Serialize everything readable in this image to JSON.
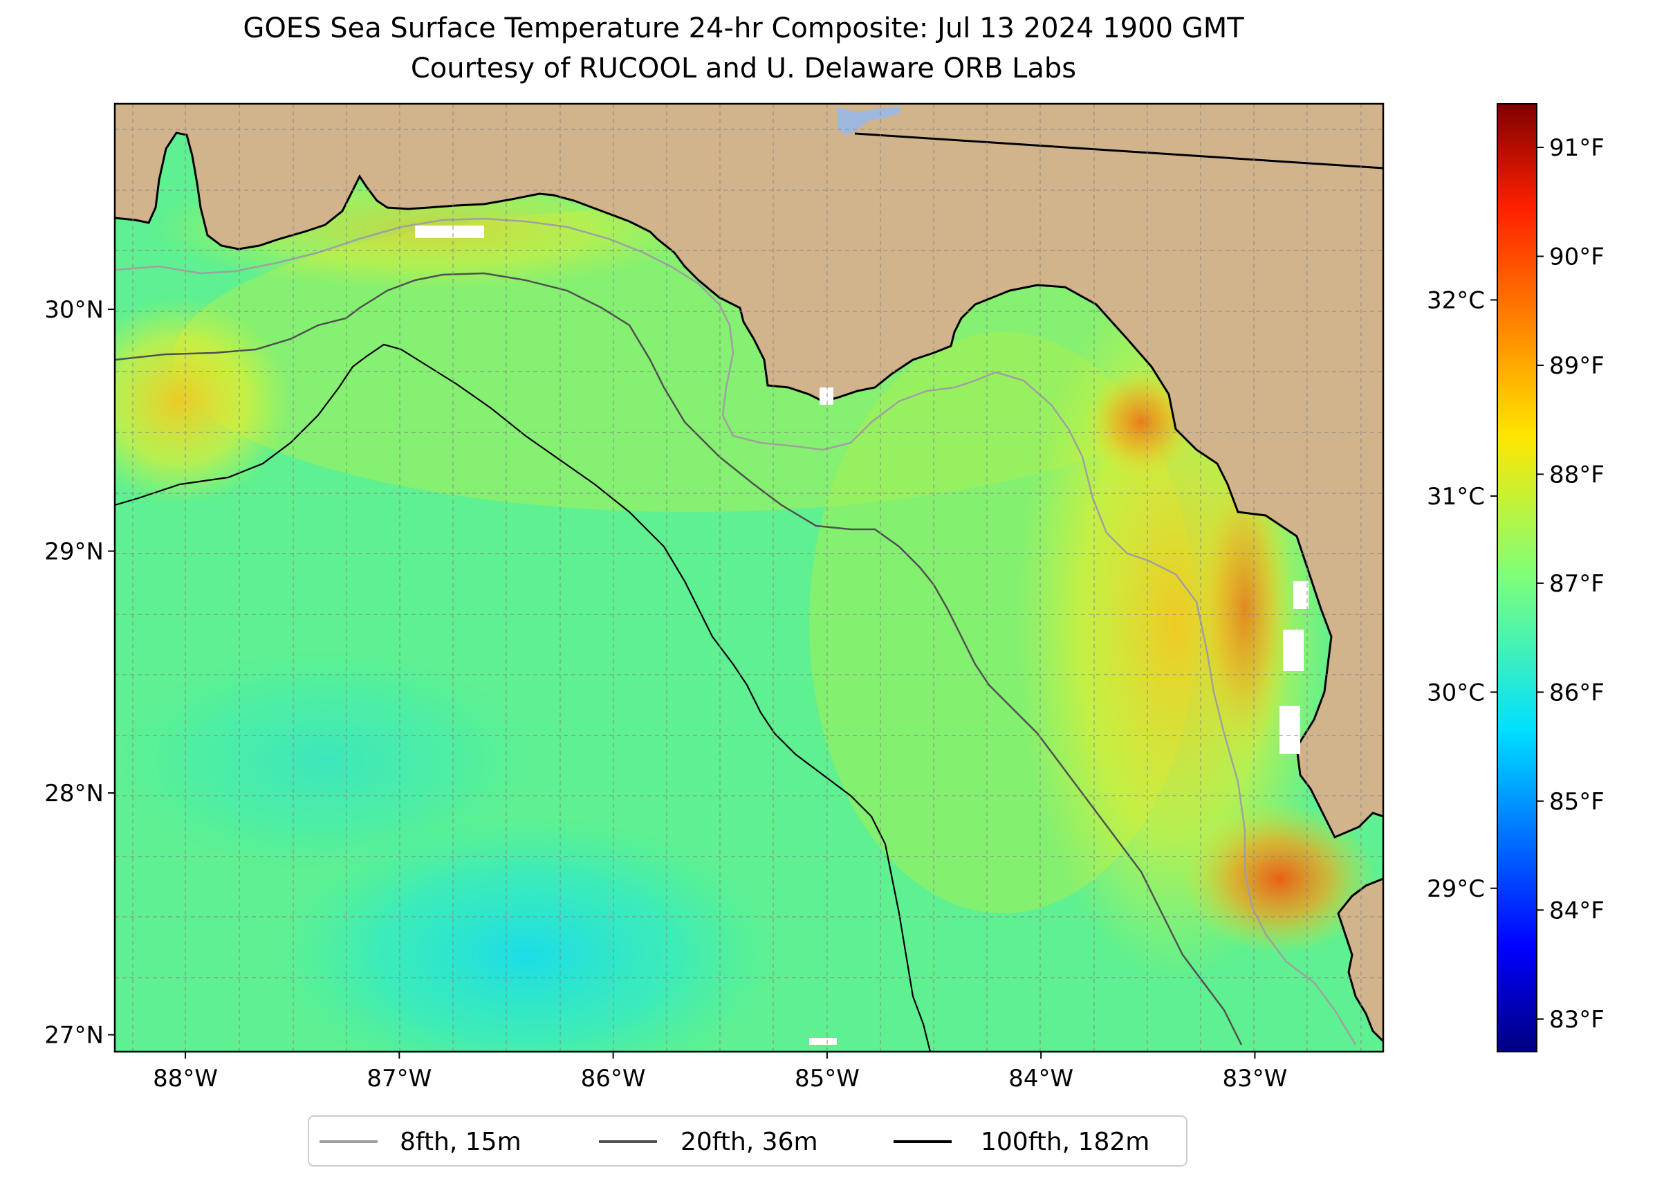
{
  "title": {
    "line1": "GOES Sea Surface Temperature 24-hr Composite: Jul 13 2024 1900 GMT",
    "line2": "Courtesy of RUCOOL and U. Delaware ORB Labs"
  },
  "map": {
    "lon_range": [
      -88.33,
      -82.4
    ],
    "lat_range": [
      26.93,
      30.85
    ],
    "lat_ticks": [
      {
        "value": 27,
        "label": "27°N"
      },
      {
        "value": 28,
        "label": "28°N"
      },
      {
        "value": 29,
        "label": "29°N"
      },
      {
        "value": 30,
        "label": "30°N"
      }
    ],
    "lon_ticks": [
      {
        "value": -88,
        "label": "88°W"
      },
      {
        "value": -87,
        "label": "87°W"
      },
      {
        "value": -86,
        "label": "86°W"
      },
      {
        "value": -85,
        "label": "85°W"
      },
      {
        "value": -84,
        "label": "84°W"
      },
      {
        "value": -83,
        "label": "83°W"
      }
    ],
    "grid": true,
    "colors": {
      "land": "#d2b48c",
      "lake": "#9fb8e0",
      "coast": "#000000"
    }
  },
  "colorbar": {
    "colormap": "jet",
    "f_range": [
      82.7,
      91.4
    ],
    "f_ticks": [
      {
        "value": 83,
        "label": "83°F"
      },
      {
        "value": 84,
        "label": "84°F"
      },
      {
        "value": 85,
        "label": "85°F"
      },
      {
        "value": 86,
        "label": "86°F"
      },
      {
        "value": 87,
        "label": "87°F"
      },
      {
        "value": 88,
        "label": "88°F"
      },
      {
        "value": 89,
        "label": "89°F"
      },
      {
        "value": 90,
        "label": "90°F"
      },
      {
        "value": 91,
        "label": "91°F"
      }
    ],
    "c_ticks": [
      {
        "value": 29,
        "label": "29°C"
      },
      {
        "value": 30,
        "label": "30°C"
      },
      {
        "value": 31,
        "label": "31°C"
      },
      {
        "value": 32,
        "label": "32°C"
      }
    ]
  },
  "legend": {
    "placement": "bottom-center",
    "items": [
      {
        "label": "8fth, 15m",
        "color": "#a0a0a0"
      },
      {
        "label": "20fth, 36m",
        "color": "#505050"
      },
      {
        "label": "100fth, 182m",
        "color": "#000000"
      }
    ]
  }
}
